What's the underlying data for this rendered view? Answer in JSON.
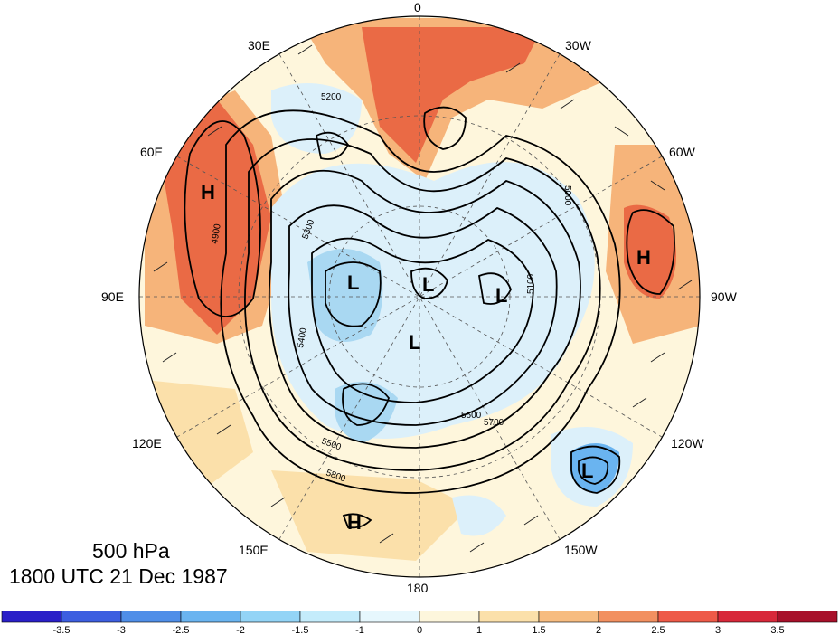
{
  "map": {
    "title_level": "500 hPa",
    "title_time": "1800 UTC 21 Dec 1987",
    "longitude_labels": {
      "top": "0",
      "bottom": "180",
      "left": "90E",
      "right": "90W",
      "upper_left_1": "30E",
      "upper_left_2": "60E",
      "upper_right_1": "30W",
      "upper_right_2": "60W",
      "lower_left_1": "120E",
      "lower_left_2": "150E",
      "lower_right_1": "120W",
      "lower_right_2": "150W"
    },
    "pressure_centers": [
      {
        "label": "H",
        "name": "high-urals"
      },
      {
        "label": "H",
        "name": "high-atlantic-west"
      },
      {
        "label": "H",
        "name": "high-pacific"
      },
      {
        "label": "L",
        "name": "low-siberia"
      },
      {
        "label": "L",
        "name": "low-arctic-1"
      },
      {
        "label": "L",
        "name": "low-arctic-2"
      },
      {
        "label": "L",
        "name": "low-pole"
      },
      {
        "label": "L",
        "name": "low-pacific-east"
      }
    ],
    "contour_labels": [
      "5800",
      "5700",
      "5600",
      "5500",
      "5400",
      "5300",
      "5200",
      "5100",
      "5000",
      "4900"
    ],
    "colors": {
      "strong_warm": "#ea6a45",
      "warm": "#f6b47a",
      "mild_warm": "#fbe0b0",
      "neutral": "#fef6dc",
      "mild_cold": "#dcf0fa",
      "cold": "#a9d8f2",
      "strong_cold": "#5ea8e4"
    }
  },
  "colorbar": {
    "tick_labels": [
      "-3.5",
      "-3",
      "-2.5",
      "-2",
      "-1.5",
      "-1",
      "0",
      "1",
      "1.5",
      "2",
      "2.5",
      "3",
      "3.5"
    ],
    "colors": [
      "#2a1fc8",
      "#3c5ee0",
      "#4f8ee8",
      "#6ab4f0",
      "#93d4f6",
      "#c4ecfb",
      "#e6f7fd",
      "#fdf6dc",
      "#fbe0aa",
      "#f7bc80",
      "#f29060",
      "#ee5a48",
      "#d8283a",
      "#a8102a"
    ]
  }
}
